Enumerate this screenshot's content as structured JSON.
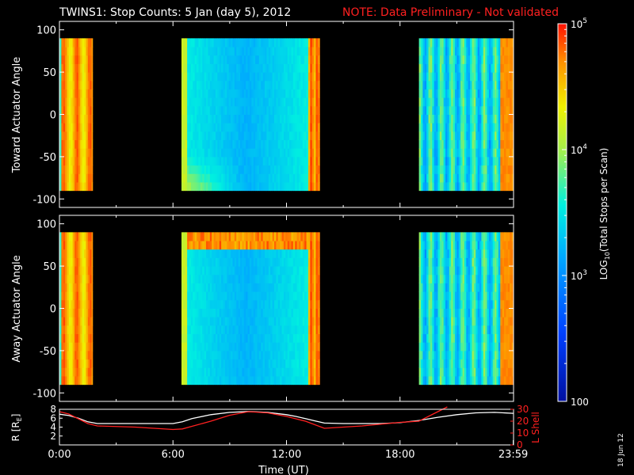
{
  "header": {
    "title": "TWINS1: Stop Counts:  5 Jan (day   5), 2012",
    "note": "NOTE: Data Preliminary - Not validated",
    "date_stamp": "18 Jun 12"
  },
  "chart_data": [
    {
      "type": "heatmap",
      "panel": "toward",
      "ylabel": "Toward Actuator Angle",
      "ylim": [
        -110,
        110
      ],
      "y_ticks": [
        "100",
        "50",
        "0",
        "-50",
        "-100"
      ],
      "data_blocks_utc_hours": [
        [
          0.0,
          1.75
        ],
        [
          6.45,
          13.75
        ],
        [
          19.0,
          24.0
        ]
      ],
      "angle_range_deg": [
        -90,
        90
      ]
    },
    {
      "type": "heatmap",
      "panel": "away",
      "ylabel": "Away Actuator Angle",
      "ylim": [
        -110,
        110
      ],
      "y_ticks": [
        "100",
        "50",
        "0",
        "-50",
        "-100"
      ],
      "data_blocks_utc_hours": [
        [
          0.0,
          1.75
        ],
        [
          6.45,
          13.75
        ],
        [
          19.0,
          24.0
        ]
      ],
      "angle_range_deg": [
        -90,
        90
      ]
    },
    {
      "type": "line",
      "panel": "orbit",
      "ylabel_left": "R [R",
      "ylabel_left_sub": "E",
      "ylabel_left_end": "]",
      "ylabel_right": "L Shell",
      "ylim_left": [
        0,
        8
      ],
      "ylim_right": [
        0,
        30
      ],
      "y_ticks_left": [
        "8",
        "6",
        "4",
        "2"
      ],
      "y_ticks_right": [
        "30",
        "20",
        "10",
        "0"
      ],
      "xlabel": "Time (UT)",
      "x_ticks": [
        "0:00",
        "6:00",
        "12:00",
        "18:00",
        "23:59"
      ],
      "series": [
        {
          "color": "#ffffff",
          "x": [
            0,
            0.5,
            1,
            1.5,
            2,
            3,
            4,
            5,
            6,
            6.5,
            7,
            8,
            9,
            10,
            11,
            12,
            12.5,
            13,
            13.5,
            14,
            15,
            16,
            17,
            18,
            19,
            20,
            21,
            22,
            23,
            24
          ],
          "y": [
            6.9,
            6.6,
            6.0,
            5.2,
            4.8,
            4.8,
            4.8,
            4.8,
            4.8,
            5.2,
            5.9,
            6.8,
            7.3,
            7.5,
            7.3,
            6.8,
            6.4,
            5.9,
            5.4,
            4.9,
            4.8,
            4.8,
            4.8,
            5.0,
            5.5,
            6.2,
            6.8,
            7.2,
            7.3,
            7.1
          ]
        },
        {
          "color": "#ff2020",
          "x": [
            0,
            0.5,
            1,
            1.5,
            2,
            4,
            6,
            6.5,
            8,
            9,
            10,
            11,
            12,
            13,
            14,
            16,
            18,
            19,
            20,
            20.5
          ],
          "y": [
            28,
            26,
            22,
            18,
            16,
            15,
            13,
            13.5,
            20,
            25,
            28,
            27,
            24,
            20,
            14,
            16,
            19,
            20,
            28,
            32
          ]
        }
      ]
    },
    {
      "type": "colorbar",
      "label": "LOG",
      "label_sub": "10",
      "label_end": "(Total Stops per Scan)",
      "scale": "log",
      "range": [
        100,
        100000
      ],
      "ticks": [
        {
          "base": "10",
          "exp": "5"
        },
        {
          "base": "10",
          "exp": "4"
        },
        {
          "base": "10",
          "exp": "3"
        },
        {
          "base": "100",
          "exp": ""
        }
      ]
    }
  ]
}
